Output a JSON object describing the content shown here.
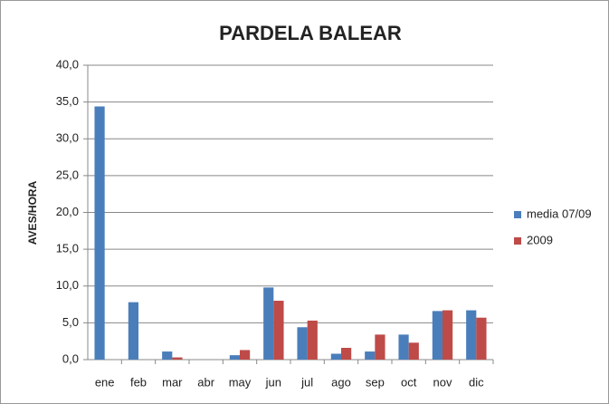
{
  "chart_data": {
    "type": "bar",
    "title": "PARDELA BALEAR",
    "y_label": "AVES/HORA",
    "categories": [
      "ene",
      "feb",
      "mar",
      "abr",
      "may",
      "jun",
      "jul",
      "ago",
      "sep",
      "oct",
      "nov",
      "dic"
    ],
    "series": [
      {
        "name": "media 07/09",
        "color": "#4a7ebb",
        "values": [
          34.4,
          7.8,
          1.1,
          0,
          0.6,
          9.8,
          4.4,
          0.8,
          1.1,
          3.4,
          6.6,
          6.7
        ]
      },
      {
        "name": "2009",
        "color": "#be4b48",
        "values": [
          0,
          0,
          0.3,
          0,
          1.3,
          8.0,
          5.3,
          1.6,
          3.4,
          2.3,
          6.7,
          5.7
        ]
      }
    ],
    "ylim": [
      0,
      40
    ],
    "yticks": [
      {
        "value": 0,
        "label": "0,0"
      },
      {
        "value": 5,
        "label": "5,0"
      },
      {
        "value": 10,
        "label": "10,0"
      },
      {
        "value": 15,
        "label": "15,0"
      },
      {
        "value": 20,
        "label": "20,0"
      },
      {
        "value": 25,
        "label": "25,0"
      },
      {
        "value": 30,
        "label": "30,0"
      },
      {
        "value": 35,
        "label": "35,0"
      },
      {
        "value": 40,
        "label": "40,0"
      }
    ],
    "grid": true,
    "legend": "right"
  }
}
